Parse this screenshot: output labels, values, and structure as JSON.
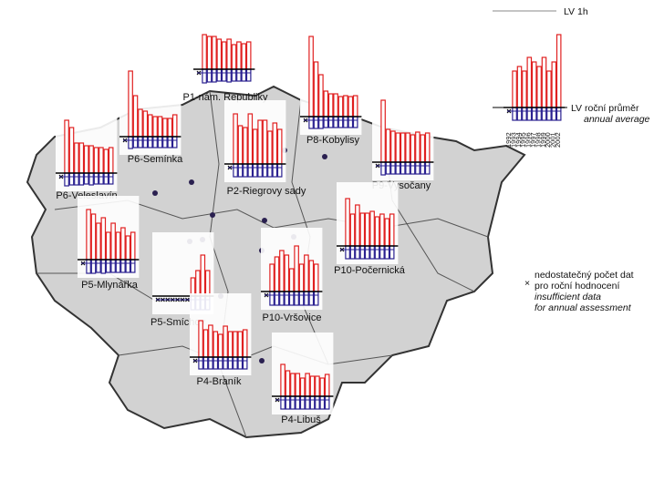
{
  "map": {
    "stations": [
      {
        "name": "P1-nám. Republiky",
        "hourly": [
          null,
          38,
          36,
          36,
          33,
          30,
          33,
          27,
          30,
          28,
          30
        ],
        "annual": [
          null,
          15,
          14,
          14,
          13,
          13,
          14,
          13,
          13,
          13,
          13
        ]
      },
      {
        "name": "P8-Kobylisy",
        "hourly": [
          null,
          88,
          60,
          46,
          28,
          25,
          25,
          22,
          23,
          22,
          23
        ],
        "annual": [
          null,
          13,
          13,
          13,
          12,
          12,
          12,
          12,
          12,
          12,
          12
        ]
      },
      {
        "name": "P6-Semínka",
        "hourly": [
          null,
          72,
          45,
          30,
          28,
          24,
          22,
          22,
          20,
          20,
          24
        ],
        "annual": [
          null,
          13,
          12,
          12,
          12,
          12,
          12,
          12,
          12,
          12,
          12
        ]
      },
      {
        "name": "P6-Veleslavín",
        "hourly": [
          null,
          58,
          50,
          33,
          33,
          30,
          30,
          28,
          28,
          26,
          28
        ],
        "annual": [
          null,
          14,
          13,
          13,
          13,
          12,
          13,
          12,
          12,
          12,
          12
        ]
      },
      {
        "name": "P9-Vysočany",
        "hourly": [
          null,
          68,
          36,
          34,
          32,
          32,
          32,
          30,
          33,
          30,
          32
        ],
        "annual": [
          null,
          14,
          13,
          13,
          13,
          13,
          13,
          13,
          13,
          13,
          13
        ]
      },
      {
        "name": "P2-Riegrovy sady",
        "hourly": [
          null,
          55,
          42,
          40,
          55,
          38,
          48,
          48,
          36,
          45,
          38
        ],
        "annual": [
          null,
          14,
          14,
          14,
          14,
          14,
          14,
          14,
          14,
          14,
          14
        ]
      },
      {
        "name": "P10-Počernická",
        "hourly": [
          null,
          52,
          35,
          45,
          36,
          36,
          38,
          32,
          35,
          30,
          35
        ],
        "annual": [
          null,
          14,
          14,
          14,
          14,
          14,
          14,
          14,
          14,
          14,
          14
        ]
      },
      {
        "name": "P5-Mlynářka",
        "hourly": [
          null,
          55,
          50,
          40,
          46,
          30,
          40,
          30,
          35,
          26,
          30
        ],
        "annual": [
          null,
          15,
          15,
          14,
          15,
          14,
          14,
          14,
          14,
          14,
          14
        ]
      },
      {
        "name": "P5-Smíchov",
        "hourly": [
          null,
          null,
          null,
          null,
          null,
          null,
          null,
          20,
          28,
          45,
          28
        ],
        "annual": [
          null,
          null,
          null,
          null,
          null,
          null,
          null,
          15,
          15,
          15,
          15
        ]
      },
      {
        "name": "P10-Vršovice",
        "hourly": [
          null,
          30,
          38,
          45,
          40,
          25,
          50,
          30,
          40,
          34,
          30
        ],
        "annual": [
          null,
          15,
          15,
          15,
          15,
          15,
          15,
          15,
          15,
          15,
          15
        ]
      },
      {
        "name": "P4-Braník",
        "hourly": [
          null,
          40,
          30,
          35,
          28,
          25,
          34,
          28,
          28,
          28,
          30
        ],
        "annual": [
          null,
          13,
          13,
          13,
          13,
          13,
          13,
          13,
          13,
          13,
          13
        ]
      },
      {
        "name": "P4-Libuš",
        "hourly": [
          null,
          35,
          28,
          25,
          25,
          20,
          25,
          22,
          22,
          20,
          24
        ],
        "annual": [
          null,
          14,
          14,
          14,
          14,
          14,
          14,
          14,
          14,
          14,
          14
        ]
      }
    ],
    "legend": {
      "lv_1h": "LV 1h",
      "lv_annual": "LV roční průměr",
      "annual_average": "annual average",
      "insufficient": [
        "nedostatečný počet dat",
        "pro roční hodnocení",
        "insufficient data",
        "for annual assessment"
      ],
      "years": [
        "1992",
        "1993",
        "1994",
        "1995",
        "1996",
        "1997",
        "1998",
        "1999",
        "2000",
        "2001",
        "2002"
      ],
      "hourly": [
        null,
        40,
        45,
        40,
        55,
        50,
        45,
        55,
        40,
        50,
        80
      ],
      "annual": [
        null,
        14,
        14,
        14,
        14,
        14,
        14,
        14,
        14,
        14,
        14
      ]
    }
  }
}
